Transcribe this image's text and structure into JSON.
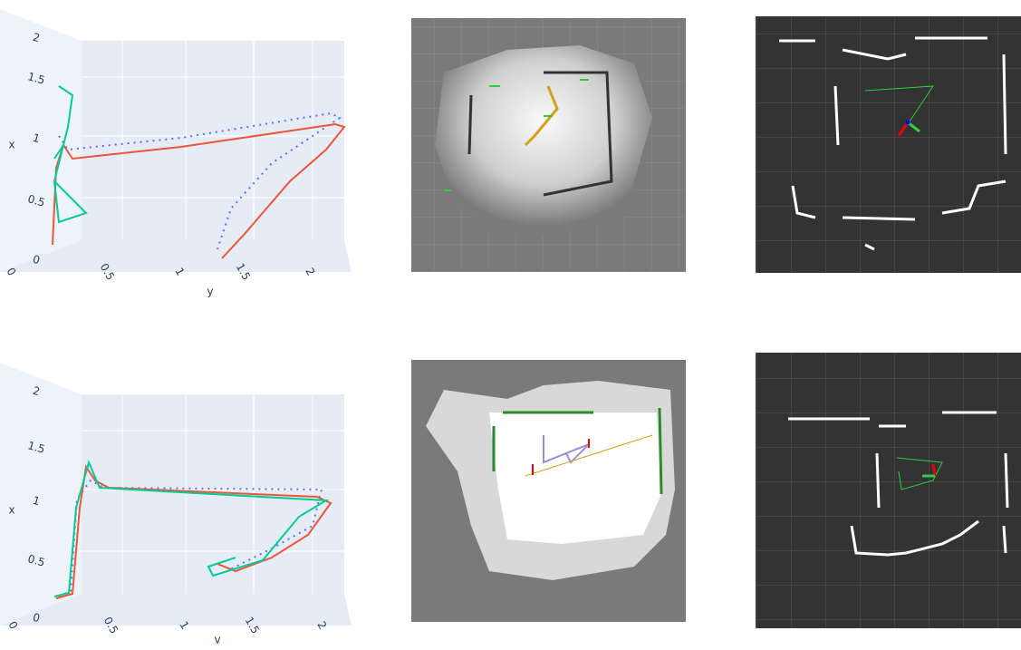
{
  "plots": [
    {
      "x_label": "x",
      "y_label": "y",
      "x_ticks": [
        "0",
        "0.5",
        "1",
        "1.5",
        "2"
      ],
      "y_ticks": [
        "0",
        "0.5",
        "1",
        "1.5",
        "2"
      ]
    },
    {
      "x_label": "x",
      "y_label": "v",
      "x_ticks": [
        "0",
        "0.5",
        "1",
        "1.5",
        "2"
      ],
      "y_ticks": [
        "0",
        "0.5",
        "1",
        "1.5",
        "2"
      ]
    }
  ]
}
